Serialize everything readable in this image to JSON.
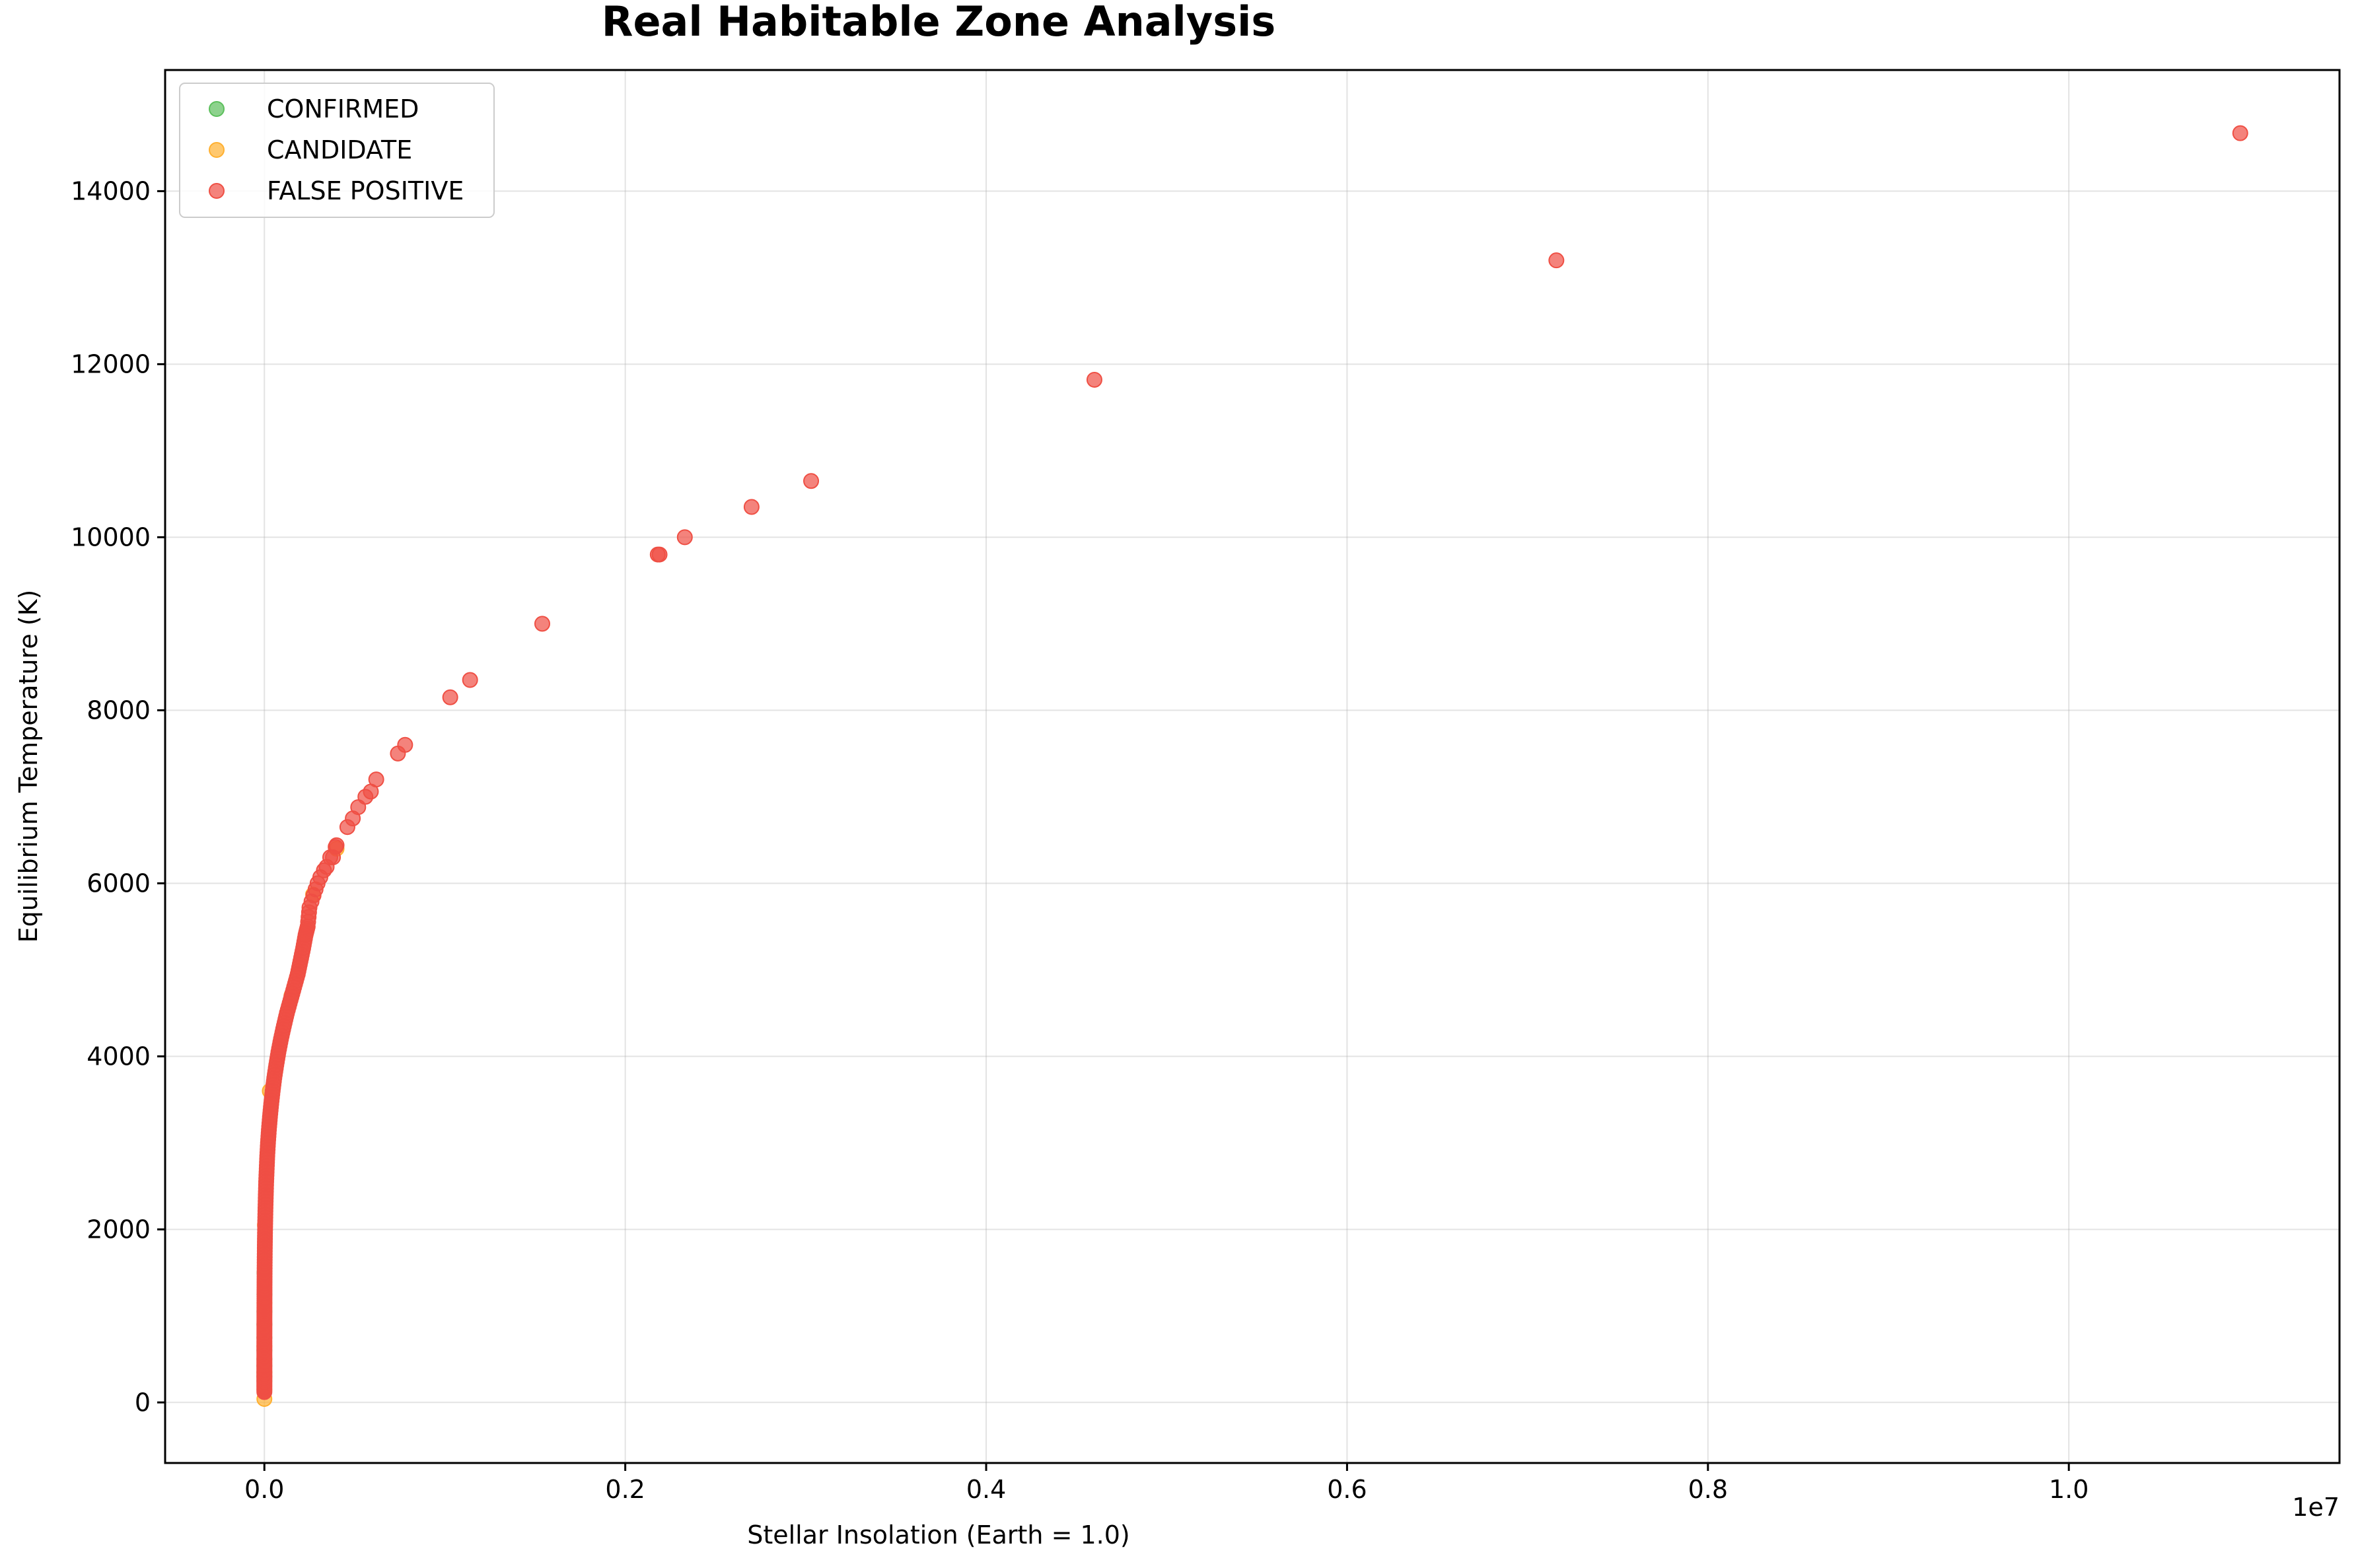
{
  "chart_data": {
    "type": "scatter",
    "title": "Real Habitable Zone Analysis",
    "xlabel": "Stellar Insolation (Earth = 1.0)",
    "ylabel": "Equilibrium Temperature (K)",
    "x_offset_label": "1e7",
    "xlim": [
      -550000,
      11500000
    ],
    "ylim": [
      -700,
      15400
    ],
    "x_ticks": [
      0,
      2000000,
      4000000,
      6000000,
      8000000,
      10000000
    ],
    "x_tick_labels": [
      "0.0",
      "0.2",
      "0.4",
      "0.6",
      "0.8",
      "1.0"
    ],
    "y_ticks": [
      0,
      2000,
      4000,
      6000,
      8000,
      10000,
      12000,
      14000
    ],
    "y_tick_labels": [
      "0",
      "2000",
      "4000",
      "6000",
      "8000",
      "10000",
      "12000",
      "14000"
    ],
    "grid": true,
    "legend_position": "top-left",
    "series": [
      {
        "name": "CONFIRMED",
        "color": "#5cbf5c",
        "points": [
          [
            0.5,
            250
          ],
          [
            1,
            300
          ],
          [
            2,
            350
          ],
          [
            5,
            420
          ],
          [
            10,
            500
          ],
          [
            20,
            600
          ],
          [
            50,
            750
          ],
          [
            100,
            900
          ],
          [
            200,
            1050
          ],
          [
            400,
            1250
          ],
          [
            800,
            1500
          ]
        ]
      },
      {
        "name": "CANDIDATE",
        "color": "#ffb030",
        "points": [
          [
            0.05,
            40
          ],
          [
            0.5,
            150
          ],
          [
            3,
            350
          ],
          [
            30,
            650
          ],
          [
            300,
            1150
          ],
          [
            3000,
            2050
          ],
          [
            30000,
            3600
          ],
          [
            150000,
            4700
          ],
          [
            270000,
            5870
          ],
          [
            400000,
            6400
          ]
        ]
      },
      {
        "name": "FALSE POSITIVE",
        "color": "#ef4f44",
        "points": [
          [
            0.1,
            120
          ],
          [
            0.5,
            180
          ],
          [
            1,
            230
          ],
          [
            2,
            280
          ],
          [
            3,
            320
          ],
          [
            5,
            370
          ],
          [
            8,
            420
          ],
          [
            12,
            470
          ],
          [
            20,
            530
          ],
          [
            30,
            600
          ],
          [
            45,
            660
          ],
          [
            65,
            730
          ],
          [
            90,
            800
          ],
          [
            130,
            870
          ],
          [
            180,
            940
          ],
          [
            250,
            1020
          ],
          [
            350,
            1100
          ],
          [
            500,
            1200
          ],
          [
            700,
            1300
          ],
          [
            1000,
            1420
          ],
          [
            1400,
            1550
          ],
          [
            1900,
            1680
          ],
          [
            2600,
            1820
          ],
          [
            3500,
            1960
          ],
          [
            4700,
            2100
          ],
          [
            6200,
            2250
          ],
          [
            8000,
            2400
          ],
          [
            10000,
            2550
          ],
          [
            13000,
            2700
          ],
          [
            16000,
            2850
          ],
          [
            20000,
            3000
          ],
          [
            25000,
            3150
          ],
          [
            31000,
            3300
          ],
          [
            38000,
            3450
          ],
          [
            46000,
            3600
          ],
          [
            55000,
            3750
          ],
          [
            66000,
            3900
          ],
          [
            78000,
            4050
          ],
          [
            92000,
            4200
          ],
          [
            108000,
            4350
          ],
          [
            125000,
            4500
          ],
          [
            145000,
            4650
          ],
          [
            165000,
            4800
          ],
          [
            185000,
            4950
          ],
          [
            200000,
            5100
          ],
          [
            215000,
            5250
          ],
          [
            228000,
            5400
          ],
          [
            240000,
            5500
          ],
          [
            250000,
            5720
          ],
          [
            295000,
            6000
          ],
          [
            310000,
            6070
          ],
          [
            330000,
            6150
          ],
          [
            345000,
            6190
          ],
          [
            365000,
            6300
          ],
          [
            380000,
            6300
          ],
          [
            395000,
            6420
          ],
          [
            400000,
            6440
          ],
          [
            460000,
            6650
          ],
          [
            490000,
            6750
          ],
          [
            520000,
            6880
          ],
          [
            560000,
            7000
          ],
          [
            590000,
            7060
          ],
          [
            620000,
            7200
          ],
          [
            740000,
            7500
          ],
          [
            780000,
            7600
          ],
          [
            1030000,
            8150
          ],
          [
            1140000,
            8350
          ],
          [
            1540000,
            9000
          ],
          [
            2180000,
            9800
          ],
          [
            2190000,
            9800
          ],
          [
            2330000,
            10000
          ],
          [
            2700000,
            10350
          ],
          [
            3030000,
            10650
          ],
          [
            4600000,
            11820
          ],
          [
            7160000,
            13200
          ],
          [
            10950000,
            14670
          ]
        ]
      }
    ]
  }
}
